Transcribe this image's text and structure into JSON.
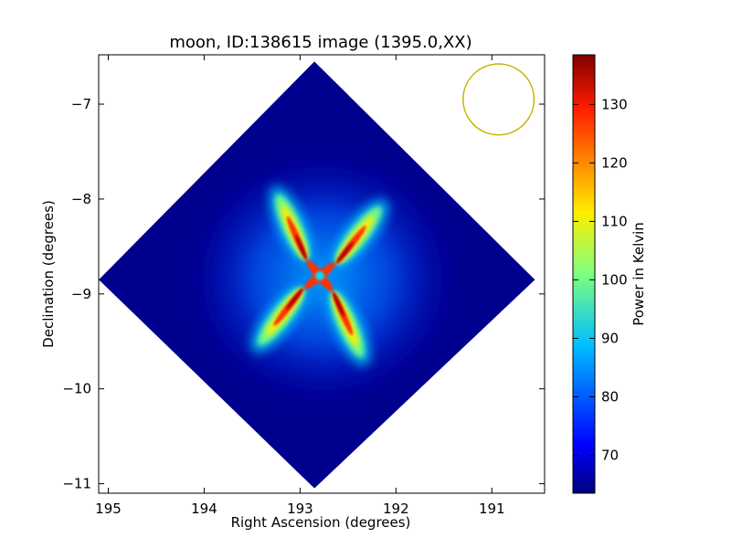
{
  "chart_data": {
    "type": "heatmap",
    "title": "moon, ID:138615 image (1395.0,XX)",
    "xlabel": "Right Ascension (degrees)",
    "ylabel": "Declination (degrees)",
    "xlim": [
      195.1,
      190.45
    ],
    "ylim": [
      -11.1,
      -6.48
    ],
    "xticks": [
      {
        "value": 195,
        "label": "195"
      },
      {
        "value": 194,
        "label": "194"
      },
      {
        "value": 193,
        "label": "193"
      },
      {
        "value": 192,
        "label": "192"
      },
      {
        "value": 191,
        "label": "191"
      }
    ],
    "yticks": [
      {
        "value": -7,
        "label": "−7"
      },
      {
        "value": -8,
        "label": "−8"
      },
      {
        "value": -9,
        "label": "−9"
      },
      {
        "value": -10,
        "label": "−10"
      },
      {
        "value": -11,
        "label": "−11"
      }
    ],
    "colorbar": {
      "label": "Power in Kelvin",
      "range": [
        63.5,
        138.5
      ],
      "colormap": "jet",
      "ticks": [
        {
          "value": 70,
          "label": "70"
        },
        {
          "value": 80,
          "label": "80"
        },
        {
          "value": 90,
          "label": "90"
        },
        {
          "value": 100,
          "label": "100"
        },
        {
          "value": 110,
          "label": "110"
        },
        {
          "value": 120,
          "label": "120"
        },
        {
          "value": 130,
          "label": "130"
        }
      ]
    },
    "image_footprint": {
      "shape": "square rotated 45 degrees",
      "corners_ra_dec": [
        [
          192.85,
          -6.55
        ],
        [
          190.55,
          -8.85
        ],
        [
          192.85,
          -11.05
        ],
        [
          195.1,
          -8.85
        ]
      ],
      "background_value": 64
    },
    "source": {
      "center_ra_dec": [
        192.82,
        -8.85
      ],
      "peak_value": 138,
      "structure": "four-armed pinwheel of high power around the center, red peaks along the arms"
    },
    "beam_circle": {
      "center_ra_dec": [
        190.93,
        -6.95
      ],
      "radius_deg": 0.37,
      "color": "#c8b400"
    }
  }
}
